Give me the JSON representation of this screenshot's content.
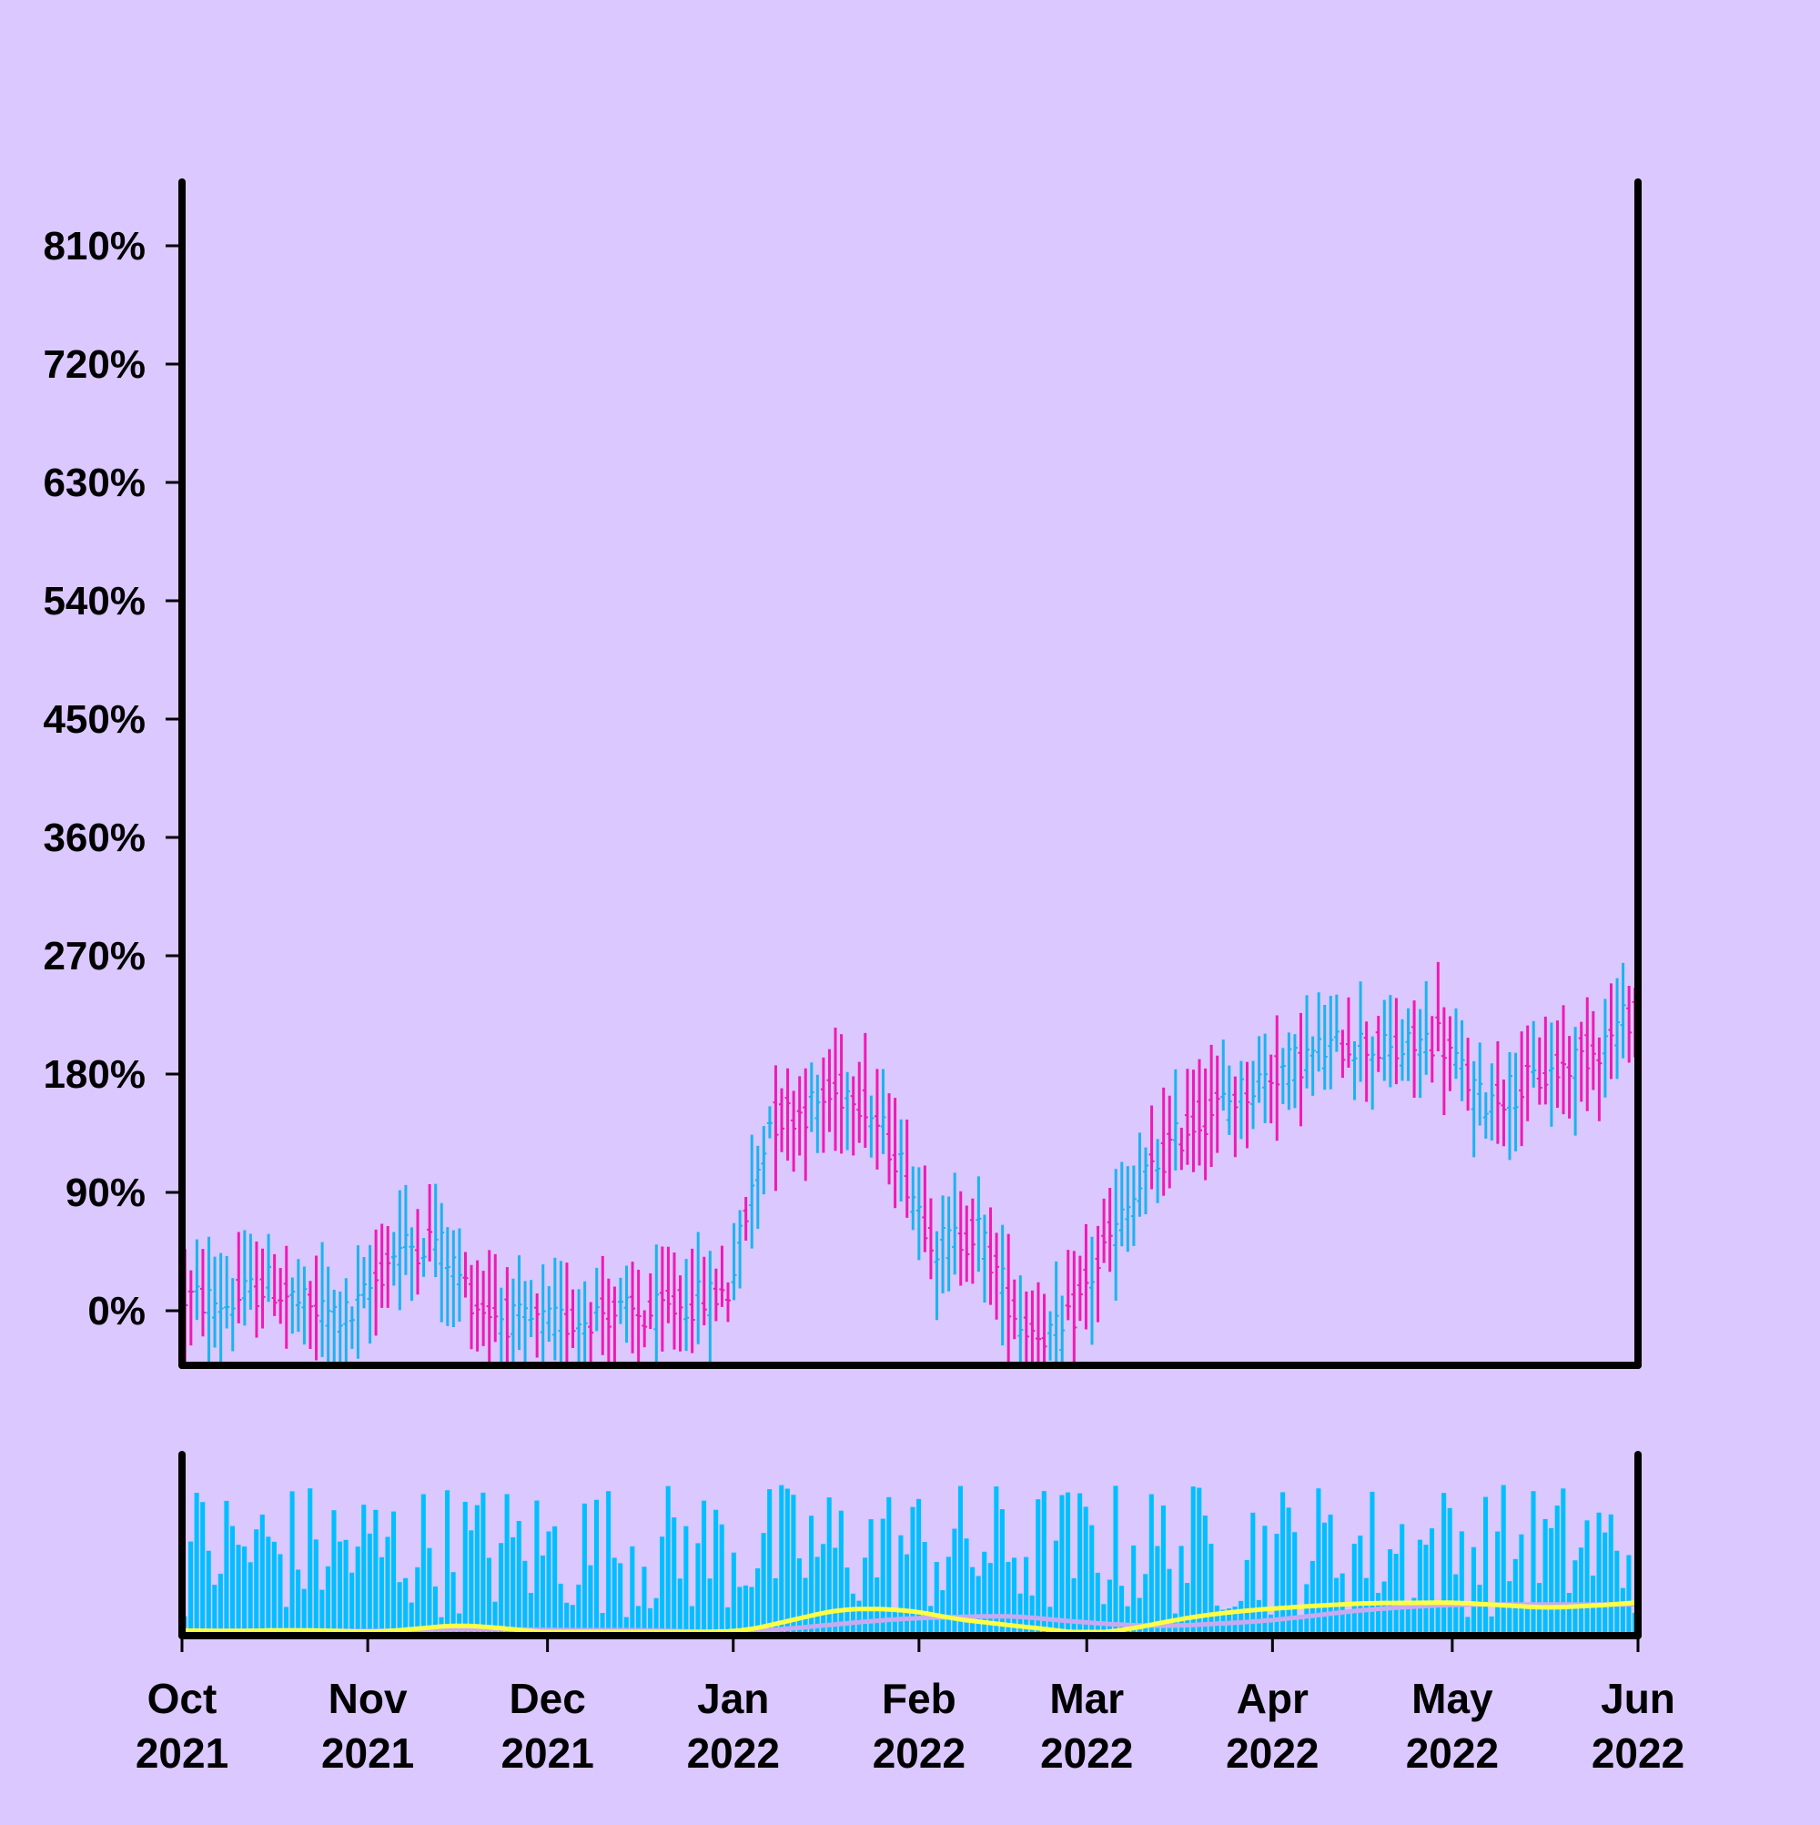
{
  "chart_data": {
    "type": "ohlc",
    "title": "",
    "xlabel": "",
    "ylabel": "",
    "y_tick_labels": [
      "0%",
      "90%",
      "180%",
      "270%",
      "360%",
      "450%",
      "540%",
      "630%",
      "720%",
      "810%"
    ],
    "y_ticks": [
      0,
      90,
      180,
      270,
      360,
      450,
      540,
      630,
      720,
      810
    ],
    "ylim": [
      -40,
      860
    ],
    "x_tick_labels": [
      {
        "month": "Oct",
        "year": "2021",
        "date": "2021-10-01"
      },
      {
        "month": "Nov",
        "year": "2021",
        "date": "2021-11-01"
      },
      {
        "month": "Dec",
        "year": "2021",
        "date": "2021-12-01"
      },
      {
        "month": "Jan",
        "year": "2022",
        "date": "2022-01-01"
      },
      {
        "month": "Feb",
        "year": "2022",
        "date": "2022-02-01"
      },
      {
        "month": "Mar",
        "year": "2022",
        "date": "2022-03-01"
      },
      {
        "month": "Apr",
        "year": "2022",
        "date": "2022-04-01"
      },
      {
        "month": "May",
        "year": "2022",
        "date": "2022-05-01"
      },
      {
        "month": "Jun",
        "year": "2022",
        "date": "2022-06-01"
      }
    ],
    "xlim": [
      "2021-10-01",
      "2022-06-01"
    ],
    "price_series": {
      "name": "",
      "dates": [
        "2021-10-01",
        "2021-10-08",
        "2021-10-15",
        "2021-10-22",
        "2021-10-29",
        "2021-11-05",
        "2021-11-12",
        "2021-11-19",
        "2021-11-26",
        "2021-12-03",
        "2021-12-10",
        "2021-12-17",
        "2021-12-24",
        "2021-12-31",
        "2022-01-07",
        "2022-01-14",
        "2022-01-21",
        "2022-01-28",
        "2022-02-04",
        "2022-02-11",
        "2022-02-18",
        "2022-02-25",
        "2022-03-04",
        "2022-03-11",
        "2022-03-18",
        "2022-03-25",
        "2022-04-01",
        "2022-04-08",
        "2022-04-15",
        "2022-04-22",
        "2022-04-29",
        "2022-05-06",
        "2022-05-13",
        "2022-05-20",
        "2022-05-27",
        "2022-05-31"
      ],
      "close": [
        10,
        5,
        20,
        0,
        -5,
        45,
        55,
        5,
        -10,
        -10,
        0,
        -5,
        5,
        15,
        145,
        155,
        170,
        120,
        50,
        60,
        -10,
        -20,
        45,
        100,
        140,
        160,
        180,
        195,
        205,
        195,
        210,
        160,
        170,
        185,
        205,
        225
      ]
    },
    "up_color": "#1ab4f0",
    "down_color": "#f01ab4",
    "volume_color": "#00bfff",
    "ma_fast_color": "#ffff44",
    "ma_slow_color": "#c8aaf0",
    "background": "#dac8ff"
  }
}
